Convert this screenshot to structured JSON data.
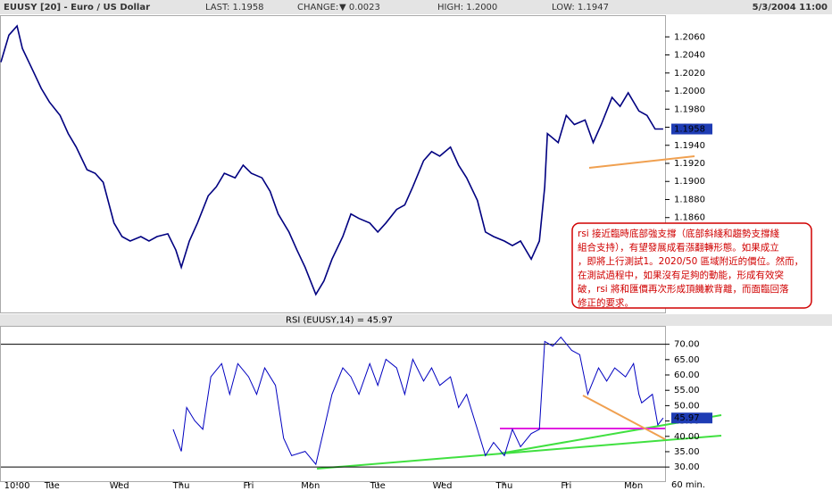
{
  "header": {
    "title": "EUUSY [20] - Euro / US Dollar",
    "last": "LAST: 1.1958",
    "change_label": "CHANGE:",
    "change": "▼ 0.0023",
    "high": "HIGH: 1.2000",
    "low": "LOW: 1.1947",
    "datetime": "5/3/2004 11:00"
  },
  "interval": "60 min.",
  "annotation": [
    "rsi 接近臨時底部強支撐（底部斜綫和趨勢支撐綫",
    "組合支持），有望發展成看漲翻轉形態。如果成立",
    "，即將上行測試1。2020/50 區域附近的價位。然而，",
    "在測試過程中，如果沒有足夠的動能，形成有效突",
    "破，rsi 將和匯價再次形成頂饑歉背離，而面臨回落",
    "修正的要求。"
  ],
  "chart_data": [
    {
      "type": "line",
      "xlim": [
        0,
        246.7
      ],
      "ylim": [
        1.1755,
        1.2084
      ],
      "yticks": [
        {
          "value": 1.186,
          "label": "1.1860"
        },
        {
          "value": 1.188,
          "label": "1.1880"
        },
        {
          "value": 1.19,
          "label": "1.1900"
        },
        {
          "value": 1.192,
          "label": "1.1920"
        },
        {
          "value": 1.194,
          "label": "1.1940"
        },
        {
          "value": 1.196,
          "label": "1.1960"
        },
        {
          "value": 1.198,
          "label": "1.1980"
        },
        {
          "value": 1.2,
          "label": "1.2000"
        },
        {
          "value": 1.202,
          "label": "1.2020"
        },
        {
          "value": 1.204,
          "label": "1.2040"
        },
        {
          "value": 1.206,
          "label": "1.2060"
        }
      ],
      "last_marker": {
        "value": 1.1958,
        "label": "1.1958"
      },
      "x": [
        0,
        3,
        6,
        8,
        12,
        15,
        18,
        22,
        25,
        28,
        32,
        35,
        38,
        42,
        45,
        48,
        52,
        55,
        58,
        62,
        65,
        67,
        70,
        73,
        77,
        80,
        83,
        87,
        90,
        93,
        97,
        100,
        103,
        107,
        110,
        113,
        117,
        120,
        123,
        127,
        130,
        133,
        137,
        140,
        143,
        147,
        150,
        153,
        157,
        160,
        163,
        167,
        170,
        173,
        177,
        180,
        183,
        187,
        190,
        193,
        197,
        200,
        202,
        203,
        207,
        210,
        213,
        217,
        220,
        223,
        227,
        230,
        233,
        237,
        240,
        243,
        246
      ],
      "series": [
        {
          "name": "EUUSY",
          "color": "#000080",
          "values": [
            1.2032,
            1.2062,
            1.2072,
            1.2047,
            1.2022,
            1.2003,
            1.1988,
            1.1973,
            1.1953,
            1.1938,
            1.1913,
            1.1909,
            1.1899,
            1.1854,
            1.1839,
            1.1834,
            1.1839,
            1.1834,
            1.1839,
            1.1842,
            1.1824,
            1.1805,
            1.1834,
            1.1854,
            1.1884,
            1.1894,
            1.1909,
            1.1904,
            1.1918,
            1.1909,
            1.1904,
            1.1889,
            1.1864,
            1.1844,
            1.1824,
            1.1805,
            1.1775,
            1.179,
            1.1814,
            1.1839,
            1.1864,
            1.1859,
            1.1854,
            1.1844,
            1.1854,
            1.1869,
            1.1874,
            1.1894,
            1.1923,
            1.1933,
            1.1928,
            1.1938,
            1.1918,
            1.1904,
            1.1879,
            1.1844,
            1.1839,
            1.1834,
            1.1829,
            1.1834,
            1.1814,
            1.1834,
            1.1894,
            1.1953,
            1.1943,
            1.1973,
            1.1963,
            1.1968,
            1.1943,
            1.1963,
            1.1993,
            1.1983,
            1.1998,
            1.1978,
            1.1973,
            1.1958,
            1.1958
          ]
        }
      ]
    },
    {
      "type": "line",
      "title": "RSI (EUUSY,14) = 45.97",
      "xlim": [
        0,
        246.7
      ],
      "ylim": [
        25.1,
        76
      ],
      "yticks": [
        {
          "value": 30,
          "label": "30.00"
        },
        {
          "value": 35,
          "label": "35.00"
        },
        {
          "value": 40,
          "label": "40.00"
        },
        {
          "value": 45,
          "label": "45.00"
        },
        {
          "value": 50,
          "label": "50.00"
        },
        {
          "value": 55,
          "label": "55.00"
        },
        {
          "value": 60,
          "label": "60.00"
        },
        {
          "value": 65,
          "label": "65.00"
        },
        {
          "value": 70,
          "label": "70.00"
        }
      ],
      "hlines": [
        30,
        70
      ],
      "last_marker": {
        "value": 45.97,
        "label": "45.97"
      },
      "xticks": [
        {
          "value": 6,
          "label": "10:00"
        },
        {
          "value": 19,
          "label": "Tue"
        },
        {
          "value": 44,
          "label": "Wed"
        },
        {
          "value": 67,
          "label": "Thu"
        },
        {
          "value": 92,
          "label": "Fri"
        },
        {
          "value": 115,
          "label": "Mon"
        },
        {
          "value": 140,
          "label": "Tue"
        },
        {
          "value": 164,
          "label": "Wed"
        },
        {
          "value": 187,
          "label": "Thu"
        },
        {
          "value": 210,
          "label": "Fri"
        },
        {
          "value": 235,
          "label": "Mon"
        }
      ],
      "x": [
        64,
        67,
        69,
        72,
        75,
        78,
        82,
        85,
        88,
        92,
        95,
        98,
        102,
        105,
        108,
        113,
        117,
        120,
        123,
        127,
        130,
        133,
        137,
        140,
        143,
        147,
        150,
        153,
        157,
        160,
        163,
        167,
        170,
        173,
        177,
        180,
        183,
        187,
        190,
        193,
        197,
        200,
        202,
        205,
        208,
        212,
        215,
        218,
        222,
        225,
        228,
        232,
        235,
        237,
        238,
        242,
        244,
        246
      ],
      "series": [
        {
          "name": "RSI",
          "color": "#0000c0",
          "values": [
            42.3,
            35.1,
            49.4,
            45.1,
            42.3,
            59.4,
            63.7,
            53.7,
            63.7,
            59.4,
            53.7,
            62.3,
            56.6,
            39.4,
            33.7,
            35.1,
            30.9,
            42.3,
            53.7,
            62.3,
            59.4,
            53.7,
            63.7,
            56.6,
            65.1,
            62.3,
            53.7,
            65.1,
            58.0,
            62.3,
            56.6,
            59.4,
            49.4,
            53.7,
            42.3,
            33.7,
            38.0,
            33.7,
            42.3,
            36.6,
            40.9,
            42.3,
            70.9,
            69.4,
            72.3,
            68.0,
            66.6,
            53.7,
            62.3,
            58.0,
            62.3,
            59.4,
            63.7,
            53.7,
            50.9,
            53.7,
            43.7,
            45.97
          ]
        }
      ]
    }
  ]
}
